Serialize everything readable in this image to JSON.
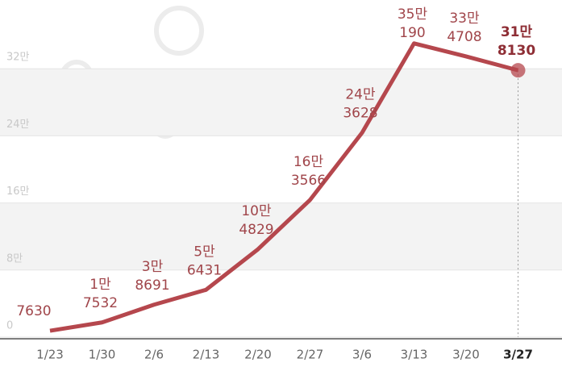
{
  "chart_data": {
    "type": "line",
    "categories": [
      "1/23",
      "1/30",
      "2/6",
      "2/13",
      "2/20",
      "2/27",
      "3/6",
      "3/13",
      "3/20",
      "3/27"
    ],
    "values": [
      7630,
      17532,
      38691,
      56431,
      104829,
      163566,
      243628,
      350190,
      334708,
      318130
    ],
    "value_labels": [
      "7630",
      "1만 7532",
      "3만 8691",
      "5만 6431",
      "10만 4829",
      "16만 3566",
      "24만 3628",
      "35만 190",
      "33만 4708",
      "31만 8130"
    ],
    "color": "#b5474d",
    "ylim": [
      0,
      400000
    ],
    "yticks": [
      0,
      {
        "value": 80000,
        "label": "8만"
      },
      {
        "value": 160000,
        "label": "16만"
      },
      {
        "value": 240000,
        "label": "24만"
      },
      {
        "value": 320000,
        "label": "32만"
      }
    ],
    "grid": true
  }
}
